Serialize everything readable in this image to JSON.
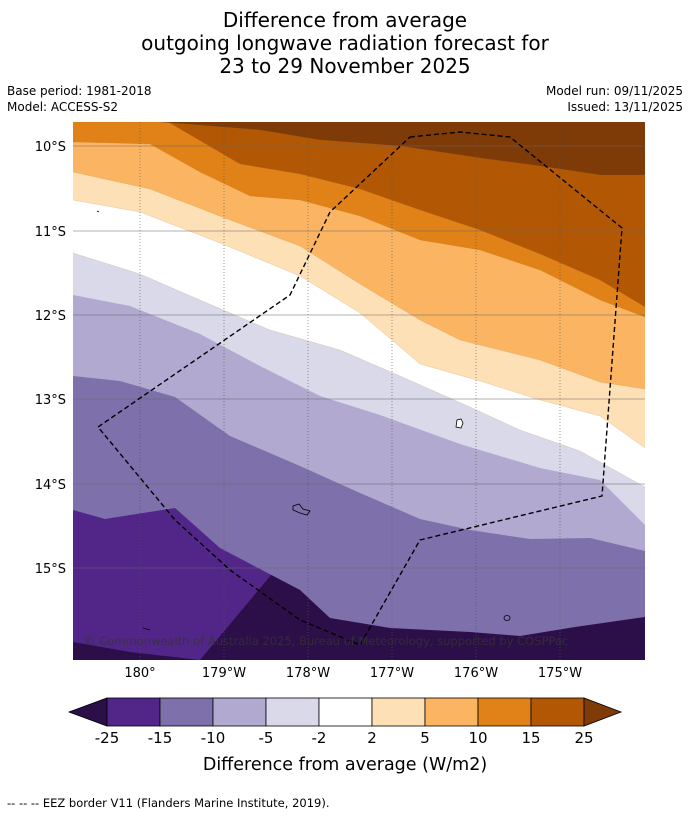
{
  "title": {
    "line1": "Difference from average",
    "line2": "outgoing longwave radiation forecast for",
    "line3": "23 to 29 November 2025"
  },
  "meta": {
    "base_period": "Base period: 1981-2018",
    "model": "Model: ACCESS-S2",
    "model_run": "Model run: 09/11/2025",
    "issued": "Issued: 13/11/2025"
  },
  "map": {
    "lat_labels": [
      "10°S",
      "11°S",
      "12°S",
      "13°S",
      "14°S",
      "15°S"
    ],
    "lon_labels": [
      "180°",
      "179°W",
      "178°W",
      "177°W",
      "176°W",
      "175°W"
    ],
    "copyright": "© Commonwealth of Australia 2025, Bureau of Meteorology, supported by COSPPac",
    "band_colors": [
      "#2c0f49",
      "#522689",
      "#7d70ab",
      "#b1a9d0",
      "#d9d9ea",
      "#ffffff",
      "#fde0b6",
      "#fbb562",
      "#e08218",
      "#b25805",
      "#7e3b07"
    ]
  },
  "colorbar": {
    "ticks": [
      "-25",
      "-15",
      "-10",
      "-5",
      "-2",
      "2",
      "5",
      "10",
      "15",
      "25"
    ],
    "colors": [
      "#522689",
      "#7d70ab",
      "#b1a9d0",
      "#d9d9ea",
      "#ffffff",
      "#fde0b6",
      "#fbb562",
      "#e08218",
      "#b25805"
    ],
    "under_color": "#2c0f49",
    "over_color": "#7e3b07",
    "label": "Difference from average (W/m2)"
  },
  "footer": {
    "legend_text": "--  --  -- EEZ border V11 (Flanders Marine Institute, 2019)."
  }
}
